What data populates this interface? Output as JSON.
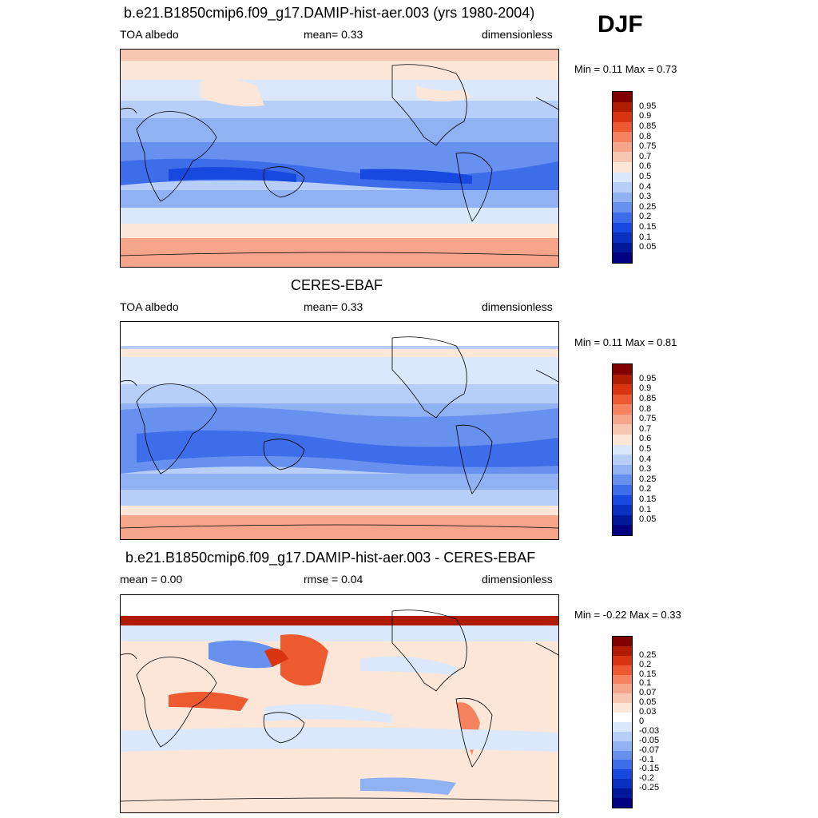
{
  "season": "DJF",
  "panels": [
    {
      "id": "model",
      "title": "b.e21.B1850cmip6.f09_g17.DAMIP-hist-aer.003 (yrs 1980-2004)",
      "left_label": "TOA albedo",
      "mid_label": "mean=   0.33",
      "right_label": "dimensionless",
      "minmax": "Min =   0.11 Max =   0.73",
      "colorbar_colors": [
        "#800000",
        "#b01c00",
        "#d83410",
        "#ee5a30",
        "#f58360",
        "#f5a58a",
        "#f7c6b0",
        "#fbe6d8",
        "#dbe8fb",
        "#b7cef8",
        "#90b2f3",
        "#6890ee",
        "#3d6de9",
        "#1748e0",
        "#0930c0",
        "#00199a",
        "#000080"
      ],
      "colorbar_labels": [
        "0.95",
        "0.9",
        "0.85",
        "0.8",
        "0.75",
        "0.7",
        "0.6",
        "0.5",
        "0.4",
        "0.3",
        "0.25",
        "0.2",
        "0.15",
        "0.1",
        "0.05"
      ]
    },
    {
      "id": "obs",
      "title": "CERES-EBAF",
      "left_label": "TOA albedo",
      "mid_label": "mean=   0.33",
      "right_label": "dimensionless",
      "minmax": "Min =   0.11 Max =   0.81",
      "colorbar_colors": [
        "#800000",
        "#b01c00",
        "#d83410",
        "#ee5a30",
        "#f58360",
        "#f5a58a",
        "#f7c6b0",
        "#fbe6d8",
        "#dbe8fb",
        "#b7cef8",
        "#90b2f3",
        "#6890ee",
        "#3d6de9",
        "#1748e0",
        "#0930c0",
        "#00199a",
        "#000080"
      ],
      "colorbar_labels": [
        "0.95",
        "0.9",
        "0.85",
        "0.8",
        "0.75",
        "0.7",
        "0.6",
        "0.5",
        "0.4",
        "0.3",
        "0.25",
        "0.2",
        "0.15",
        "0.1",
        "0.05"
      ]
    },
    {
      "id": "diff",
      "title": "b.e21.B1850cmip6.f09_g17.DAMIP-hist-aer.003 - CERES-EBAF",
      "left_label": "mean =   0.00",
      "mid_label": "rmse =   0.04",
      "right_label": "dimensionless",
      "minmax": "Min = -0.22 Max =   0.33",
      "colorbar_colors": [
        "#800000",
        "#b01c00",
        "#d83410",
        "#ee5a30",
        "#f58360",
        "#f5a58a",
        "#f7c6b0",
        "#fbe6d8",
        "#ffffff",
        "#dbe8fb",
        "#b7cef8",
        "#90b2f3",
        "#6890ee",
        "#3d6de9",
        "#1748e0",
        "#0930c0",
        "#00199a",
        "#000080"
      ],
      "colorbar_labels": [
        "0.25",
        "0.2",
        "0.15",
        "0.1",
        "0.07",
        "0.05",
        "0.03",
        "0",
        "-0.03",
        "-0.05",
        "-0.07",
        "-0.1",
        "-0.15",
        "-0.2",
        "-0.25"
      ]
    }
  ]
}
